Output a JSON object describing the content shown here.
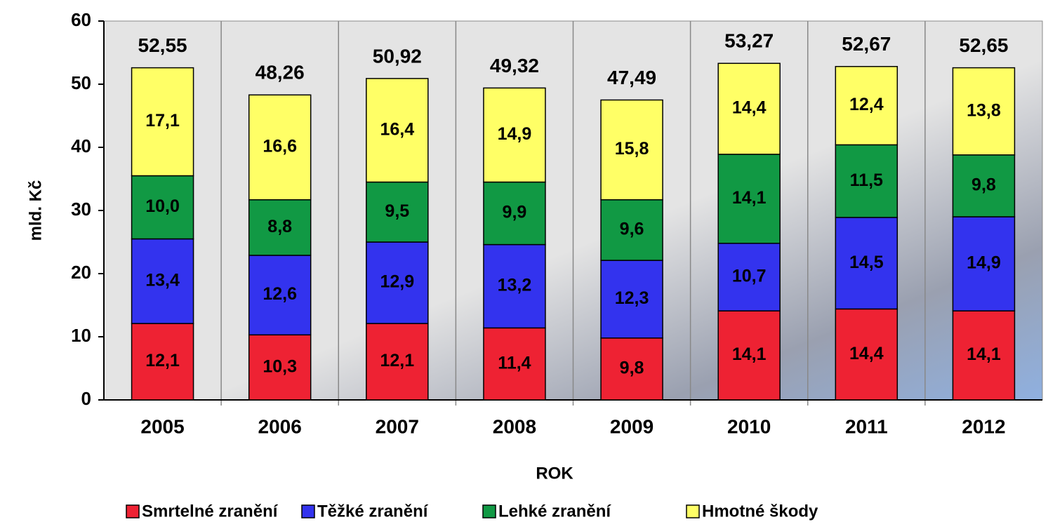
{
  "chart_data": {
    "type": "stacked_bar",
    "y_label": "mld. Kč",
    "x_label": "ROK",
    "categories": [
      "2005",
      "2006",
      "2007",
      "2008",
      "2009",
      "2010",
      "2011",
      "2012"
    ],
    "series": [
      {
        "name": "Smrtelné zranění",
        "color": "#ee2233",
        "values": [
          12.1,
          10.3,
          12.1,
          11.4,
          9.8,
          14.1,
          14.4,
          14.1
        ],
        "value_labels": [
          "12,1",
          "10,3",
          "12,1",
          "11,4",
          "9,8",
          "14,1",
          "14,4",
          "14,1"
        ]
      },
      {
        "name": "Těžké zranění",
        "color": "#3333ee",
        "values": [
          13.4,
          12.6,
          12.9,
          13.2,
          12.3,
          10.7,
          14.5,
          14.9
        ],
        "value_labels": [
          "13,4",
          "12,6",
          "12,9",
          "13,2",
          "12,3",
          "10,7",
          "14,5",
          "14,9"
        ]
      },
      {
        "name": "Lehké zranění",
        "color": "#119944",
        "values": [
          10.0,
          8.8,
          9.5,
          9.9,
          9.6,
          14.1,
          11.5,
          9.8
        ],
        "value_labels": [
          "10,0",
          "8,8",
          "9,5",
          "9,9",
          "9,6",
          "14,1",
          "11,5",
          "9,8"
        ]
      },
      {
        "name": "Hmotné škody",
        "color": "#ffff66",
        "values": [
          17.1,
          16.6,
          16.4,
          14.9,
          15.8,
          14.4,
          12.4,
          13.8
        ],
        "value_labels": [
          "17,1",
          "16,6",
          "16,4",
          "14,9",
          "15,8",
          "14,4",
          "12,4",
          "13,8"
        ]
      }
    ],
    "totals": {
      "values": [
        52.55,
        48.26,
        50.92,
        49.32,
        47.49,
        53.27,
        52.67,
        52.65
      ],
      "value_labels": [
        "52,55",
        "48,26",
        "50,92",
        "49,32",
        "47,49",
        "53,27",
        "52,67",
        "52,65"
      ]
    },
    "ylim": [
      0,
      60
    ],
    "yticks": [
      0,
      10,
      20,
      30,
      40,
      50,
      60
    ],
    "grid": false,
    "legend": "bottom"
  }
}
